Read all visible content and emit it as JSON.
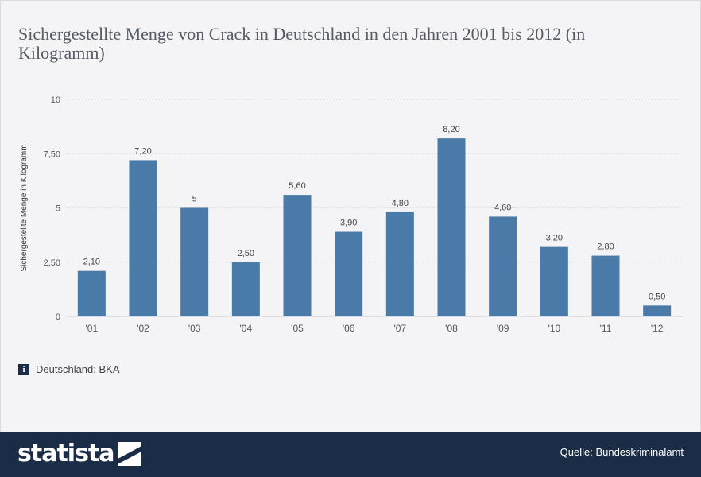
{
  "title": "Sichergestellte Menge von Crack in Deutschland in den Jahren 2001 bis 2012 (in Kilogramm)",
  "info": "Deutschland; BKA",
  "footer": {
    "logo": "statista",
    "source": "Quelle: Bundeskriminalamt"
  },
  "colors": {
    "bar": "#4a7aa7",
    "footer": "#1a2c46",
    "grid": "#d8dbe1"
  },
  "chart_data": {
    "type": "bar",
    "title": "Sichergestellte Menge von Crack in Deutschland in den Jahren 2001 bis 2012 (in Kilogramm)",
    "xlabel": "",
    "ylabel": "Sichergestellte Menge in Kilogramm",
    "categories": [
      "'01",
      "'02",
      "'03",
      "'04",
      "'05",
      "'06",
      "'07",
      "'08",
      "'09",
      "'10",
      "'11",
      "'12"
    ],
    "values": [
      2.1,
      7.2,
      5,
      2.5,
      5.6,
      3.9,
      4.8,
      8.2,
      4.6,
      3.2,
      2.8,
      0.5
    ],
    "value_labels": [
      "2,10",
      "7,20",
      "5",
      "2,50",
      "5,60",
      "3,90",
      "4,80",
      "8,20",
      "4,60",
      "3,20",
      "2,80",
      "0,50"
    ],
    "yticks": [
      0,
      2.5,
      5,
      7.5,
      10
    ],
    "ytick_labels": [
      "0",
      "2,50",
      "5",
      "7,50",
      "10"
    ],
    "ylim": [
      0,
      10
    ],
    "grid": true
  }
}
